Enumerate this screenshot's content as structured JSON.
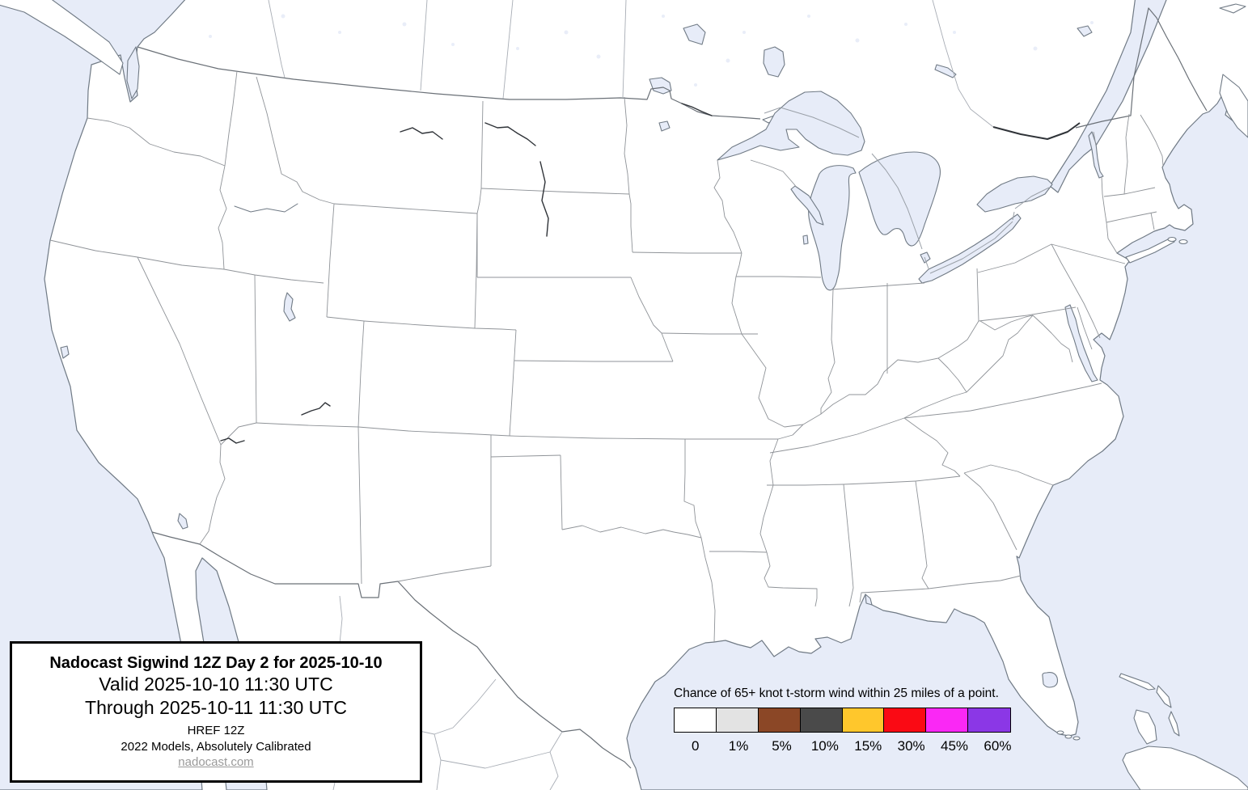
{
  "title_box": {
    "title": "Nadocast Sigwind 12Z Day 2 for 2025-10-10",
    "valid": "Valid 2025-10-10 11:30 UTC",
    "through": "Through 2025-10-11 11:30 UTC",
    "model": "HREF 12Z",
    "calibration": "2022 Models, Absolutely Calibrated",
    "website": "nadocast.com"
  },
  "legend": {
    "title": "Chance of 65+ knot t-storm wind within 25 miles of a point.",
    "bins": [
      {
        "label": "0",
        "color": "#FFFFFF"
      },
      {
        "label": "1%",
        "color": "#E3E3E3"
      },
      {
        "label": "5%",
        "color": "#8B4726"
      },
      {
        "label": "10%",
        "color": "#4A4A4A"
      },
      {
        "label": "15%",
        "color": "#FFC72C"
      },
      {
        "label": "30%",
        "color": "#FA0A14"
      },
      {
        "label": "45%",
        "color": "#FA28F5"
      },
      {
        "label": "60%",
        "color": "#8B37E6"
      }
    ]
  },
  "colors": {
    "water": "#E7ECF8",
    "land": "#FFFFFF",
    "coastline": "#707A85",
    "state_border": "#8F9398",
    "national_border": "#6A7077",
    "river_dark": "#2F3338",
    "link_gray": "#9A9A9A"
  }
}
